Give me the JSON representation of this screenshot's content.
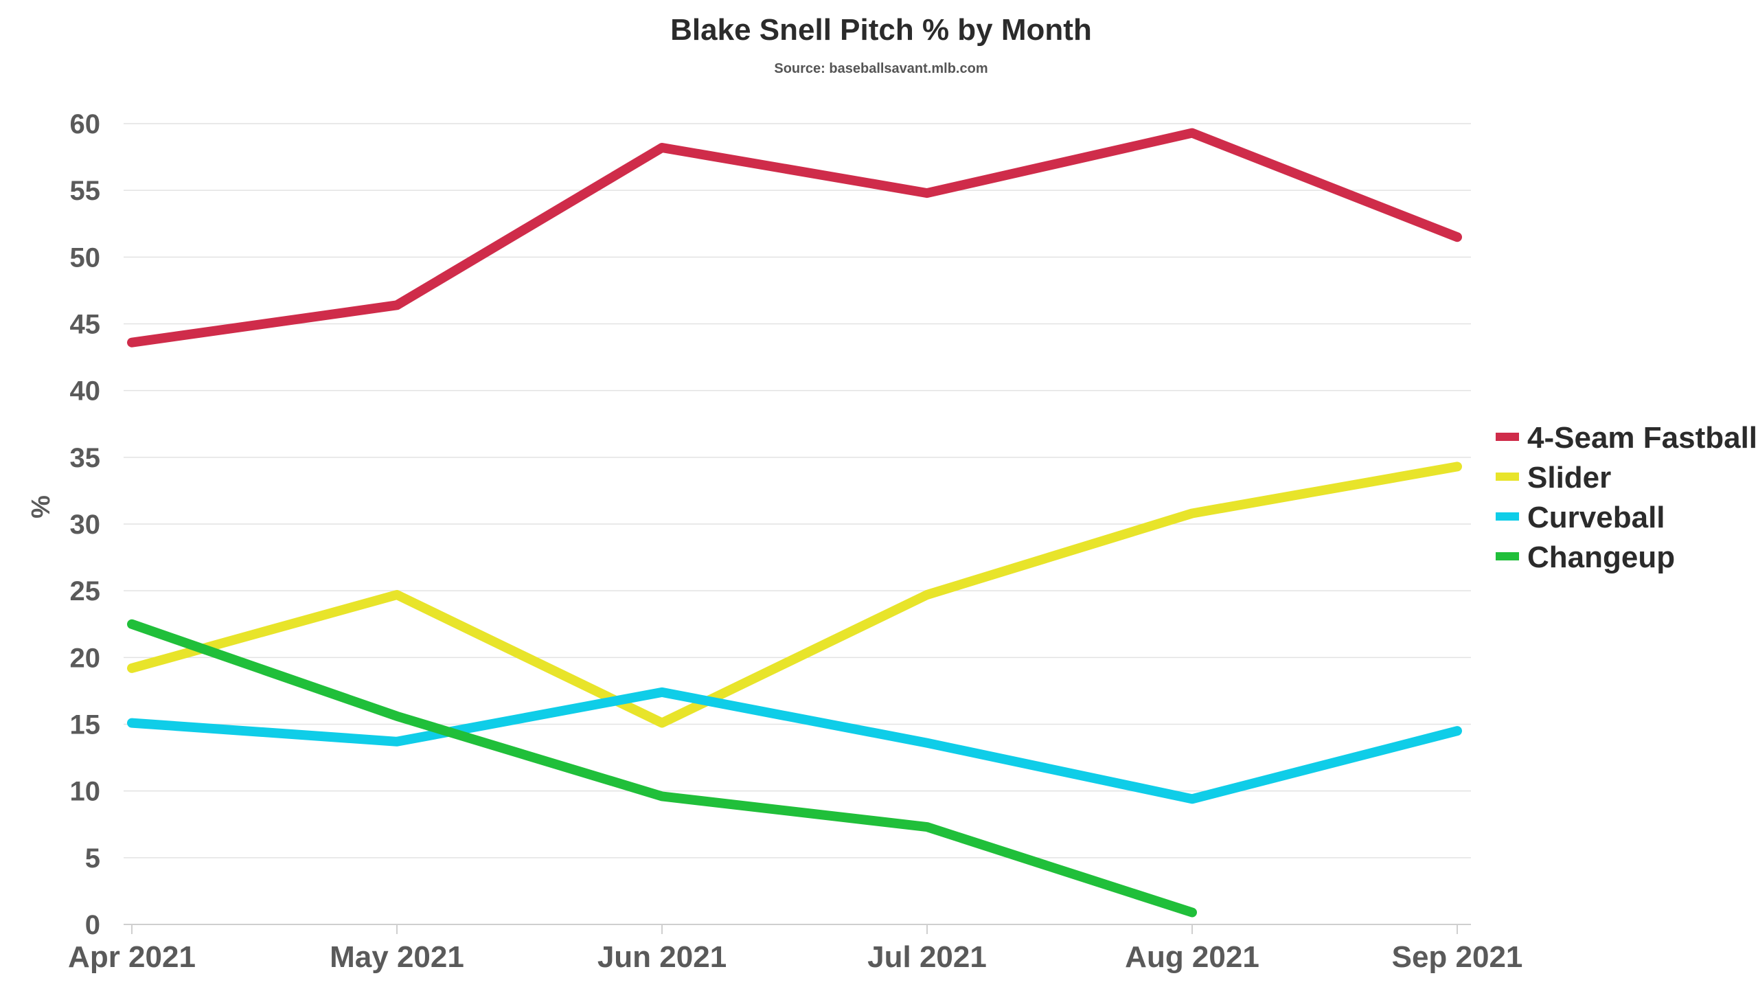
{
  "chart_data": {
    "type": "line",
    "title": "Blake Snell Pitch % by Month",
    "subtitle": "Source: baseballsavant.mlb.com",
    "ylabel": "%",
    "xlabel": "",
    "categories": [
      "Apr 2021",
      "May 2021",
      "Jun 2021",
      "Jul 2021",
      "Aug 2021",
      "Sep 2021"
    ],
    "ylim": [
      0,
      60
    ],
    "yticks": [
      0,
      5,
      10,
      15,
      20,
      25,
      30,
      35,
      40,
      45,
      50,
      55,
      60
    ],
    "grid": true,
    "legend_position": "right",
    "series": [
      {
        "name": "4-Seam Fastball",
        "color": "#cf2c4a",
        "values": [
          43.6,
          46.4,
          58.2,
          54.8,
          59.3,
          51.5
        ]
      },
      {
        "name": "Slider",
        "color": "#e8e42a",
        "values": [
          19.2,
          24.7,
          15.1,
          24.7,
          30.8,
          34.3
        ]
      },
      {
        "name": "Curveball",
        "color": "#0fcde8",
        "values": [
          15.1,
          13.7,
          17.4,
          13.6,
          9.4,
          14.5
        ]
      },
      {
        "name": "Changeup",
        "color": "#20bf3a",
        "values": [
          22.5,
          15.6,
          9.6,
          7.3,
          0.9,
          null
        ]
      }
    ]
  }
}
